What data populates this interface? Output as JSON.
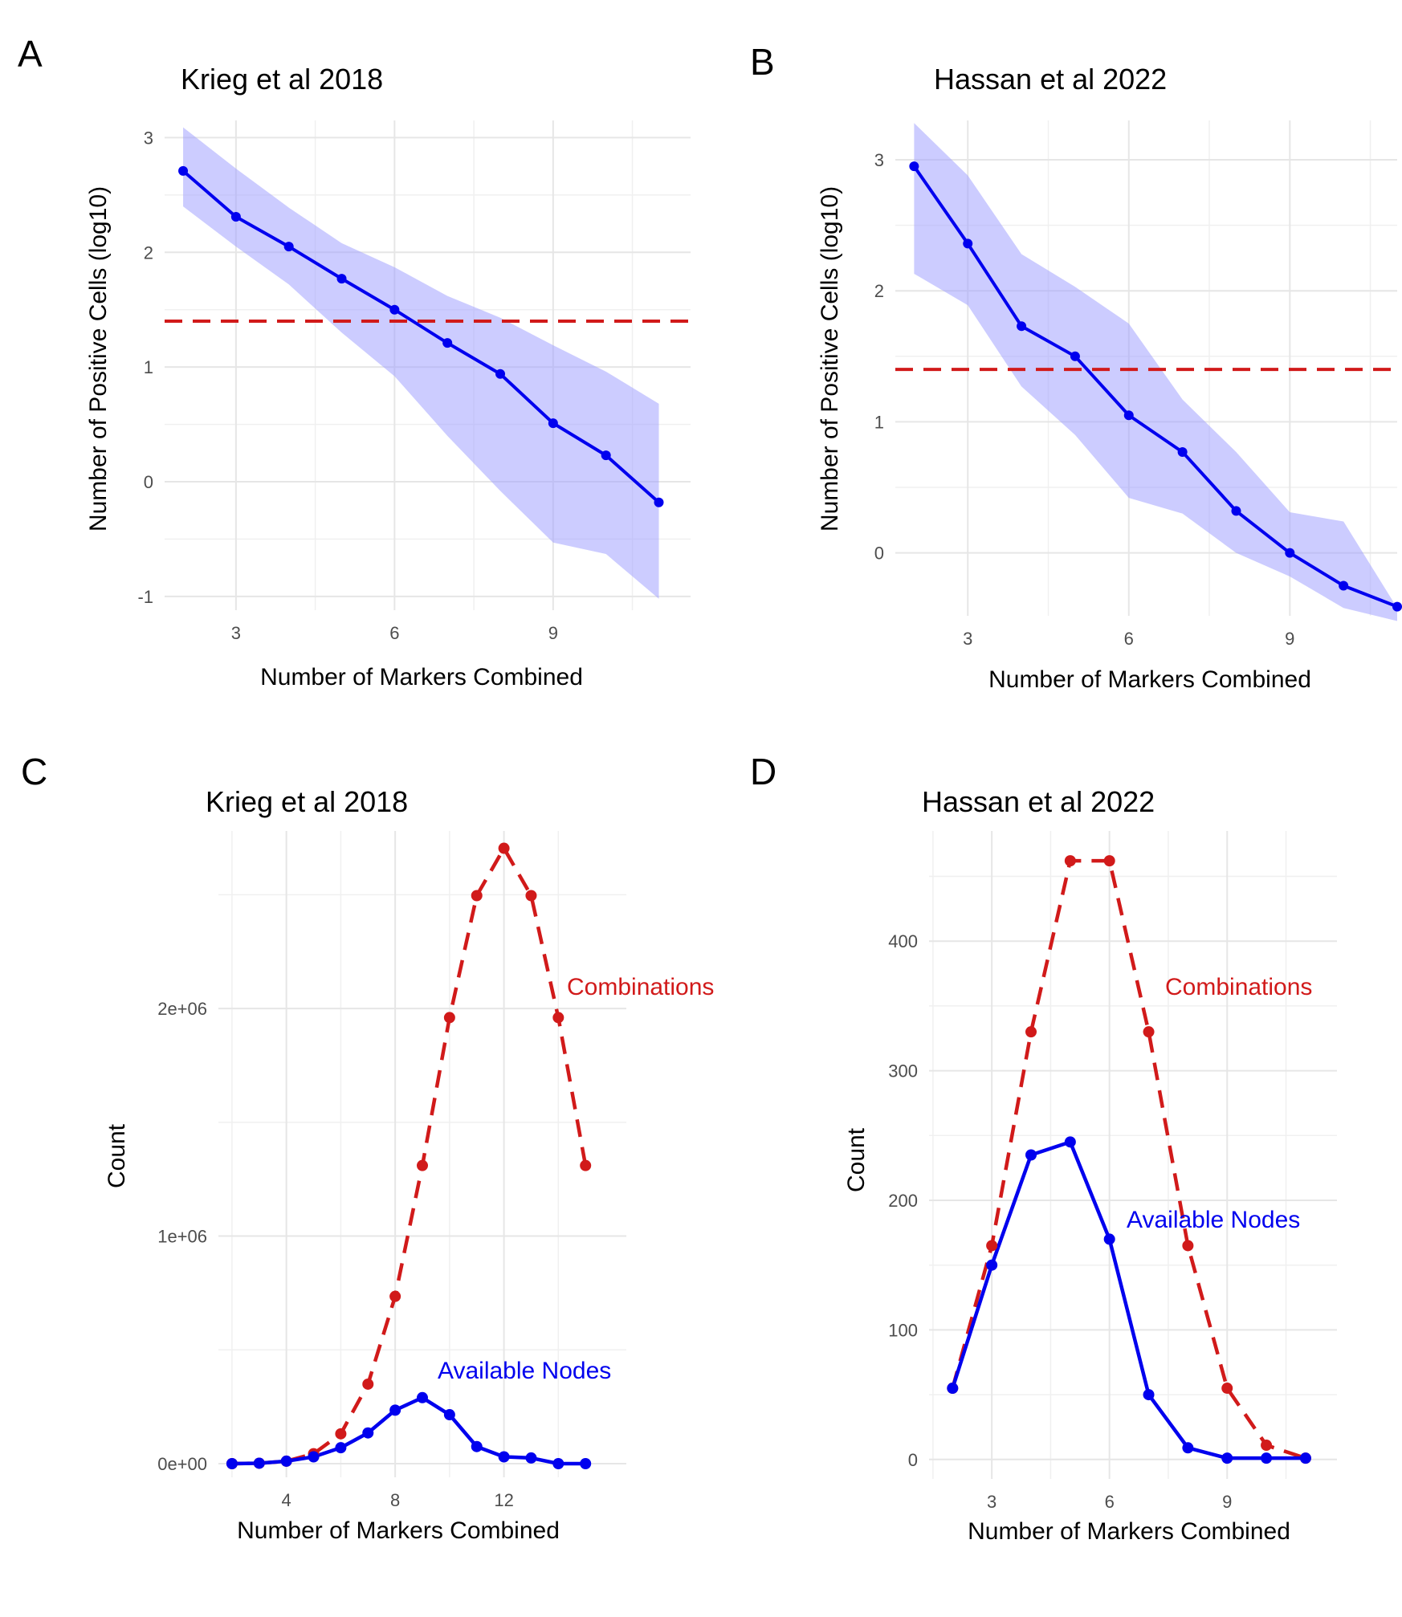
{
  "colors": {
    "line_blue": "#0000ee",
    "ribbon_blue": "#9999ff",
    "ref_red": "#d11a1a"
  },
  "chart_data": [
    {
      "panel": "A",
      "type": "line",
      "title": "Krieg et al 2018",
      "xlabel": "Number of Markers Combined",
      "ylabel": "Number of Positive Cells (log10)",
      "xlim": [
        1.65,
        11.6
      ],
      "ylim": [
        -1.12,
        3.15
      ],
      "x_ticks": [
        3,
        6,
        9
      ],
      "y_ticks": [
        -1,
        0,
        1,
        2,
        3
      ],
      "y_tick_labels": [
        "-1",
        "0",
        "1",
        "2",
        "3"
      ],
      "hline": 1.4,
      "x": [
        2,
        3,
        4,
        5,
        6,
        7,
        8,
        9,
        10,
        11
      ],
      "series": [
        {
          "name": "mean",
          "values": [
            2.71,
            2.31,
            2.05,
            1.77,
            1.5,
            1.21,
            0.94,
            0.51,
            0.23,
            -0.18
          ],
          "lower": [
            2.4,
            2.05,
            1.72,
            1.3,
            0.92,
            0.4,
            -0.08,
            -0.53,
            -0.63,
            -1.02
          ],
          "upper": [
            3.09,
            2.73,
            2.39,
            2.08,
            1.87,
            1.62,
            1.43,
            1.19,
            0.96,
            0.68
          ]
        }
      ]
    },
    {
      "panel": "B",
      "type": "line",
      "title": "Hassan et al 2022",
      "xlabel": "Number of Markers Combined",
      "ylabel": "Number of Positive Cells (log10)",
      "xlim": [
        1.65,
        11.0
      ],
      "ylim": [
        -0.48,
        3.3
      ],
      "x_ticks": [
        3,
        6,
        9
      ],
      "y_ticks": [
        0,
        1,
        2,
        3
      ],
      "y_tick_labels": [
        "0",
        "1",
        "2",
        "3"
      ],
      "hline": 1.4,
      "x": [
        2,
        3,
        4,
        5,
        6,
        7,
        8,
        9,
        10,
        11
      ],
      "series": [
        {
          "name": "mean",
          "values": [
            2.95,
            2.36,
            1.73,
            1.5,
            1.05,
            0.77,
            0.32,
            0.0,
            -0.25,
            -0.41
          ],
          "lower": [
            2.13,
            1.89,
            1.27,
            0.9,
            0.42,
            0.3,
            0.0,
            -0.18,
            -0.42,
            -0.52
          ],
          "upper": [
            3.28,
            2.88,
            2.28,
            2.03,
            1.75,
            1.17,
            0.77,
            0.31,
            0.24,
            -0.42
          ]
        }
      ]
    },
    {
      "panel": "C",
      "type": "line",
      "title": "Krieg et al 2018",
      "xlabel": "Number of Markers Combined",
      "ylabel": "Count",
      "xlim": [
        1.5,
        16.5
      ],
      "ylim": [
        -60000,
        2780000
      ],
      "x_ticks": [
        4,
        8,
        12
      ],
      "y_ticks": [
        0,
        1000000,
        2000000
      ],
      "y_tick_labels": [
        "0e+00",
        "1e+06",
        "2e+06"
      ],
      "x": [
        2,
        3,
        4,
        5,
        6,
        7,
        8,
        9,
        10,
        11,
        12,
        13,
        14,
        15
      ],
      "series": [
        {
          "name": "Combinations",
          "label": "Combinations",
          "values": [
            0,
            1820,
            10920,
            43680,
            131040,
            349440,
            735000,
            1310000,
            1960000,
            2496000,
            2704000,
            2496000,
            1960000,
            1310000
          ]
        },
        {
          "name": "Available Nodes",
          "label": "Available Nodes",
          "values": [
            0,
            1820,
            10920,
            30000,
            70000,
            135000,
            235000,
            290000,
            215000,
            75000,
            30000,
            25000,
            0,
            0
          ]
        }
      ]
    },
    {
      "panel": "D",
      "type": "line",
      "title": "Hassan et al 2022",
      "xlabel": "Number of Markers Combined",
      "ylabel": "Count",
      "xlim": [
        1.4,
        11.8
      ],
      "ylim": [
        -15,
        485
      ],
      "x_ticks": [
        3,
        6,
        9
      ],
      "y_ticks": [
        0,
        100,
        200,
        300,
        400
      ],
      "y_tick_labels": [
        "0",
        "100",
        "200",
        "300",
        "400"
      ],
      "x": [
        2,
        3,
        4,
        5,
        6,
        7,
        8,
        9,
        10,
        11
      ],
      "series": [
        {
          "name": "Combinations",
          "label": "Combinations",
          "values": [
            55,
            165,
            330,
            462,
            462,
            330,
            165,
            55,
            11,
            1
          ]
        },
        {
          "name": "Available Nodes",
          "label": "Available Nodes",
          "values": [
            55,
            150,
            235,
            245,
            170,
            50,
            9,
            1,
            1,
            1
          ]
        }
      ]
    }
  ]
}
